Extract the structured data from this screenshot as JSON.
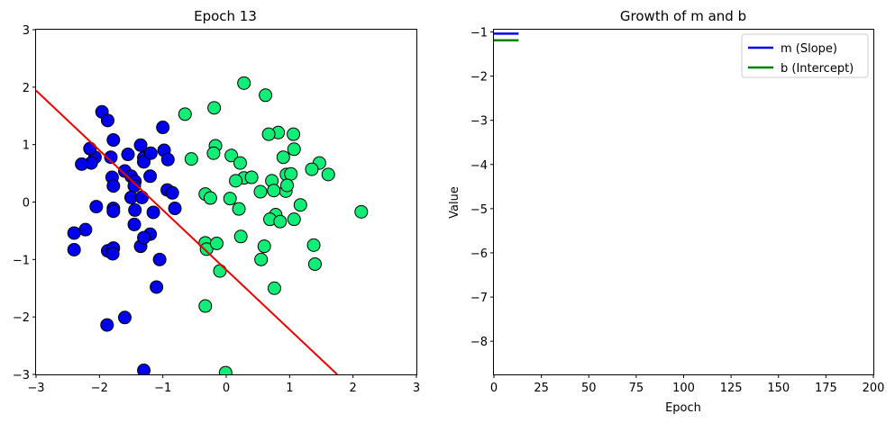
{
  "chart_data": [
    {
      "type": "scatter",
      "title": "Epoch 13",
      "xlabel": "",
      "ylabel": "",
      "xlim": [
        -3,
        3
      ],
      "ylim": [
        -3,
        3
      ],
      "xticks": [
        -3,
        -2,
        -1,
        0,
        1,
        2,
        3
      ],
      "yticks": [
        -3,
        -2,
        -1,
        0,
        1,
        2,
        3
      ],
      "grid": false,
      "series": [
        {
          "color": "#0000ee",
          "points": [
            [
              -1.96,
              1.57
            ],
            [
              -1.87,
              1.42
            ],
            [
              -1.78,
              1.08
            ],
            [
              -2.07,
              0.78
            ],
            [
              -2.15,
              0.93
            ],
            [
              -2.13,
              0.68
            ],
            [
              -2.28,
              0.66
            ],
            [
              -1.82,
              0.78
            ],
            [
              -1.8,
              0.43
            ],
            [
              -1.78,
              0.28
            ],
            [
              -1.6,
              0.54
            ],
            [
              -1.55,
              0.83
            ],
            [
              -1.5,
              0.45
            ],
            [
              -1.44,
              0.36
            ],
            [
              -1.35,
              0.99
            ],
            [
              -1.3,
              0.77
            ],
            [
              -1.3,
              0.7
            ],
            [
              -1.19,
              0.85
            ],
            [
              -1.2,
              0.45
            ],
            [
              -1.0,
              1.3
            ],
            [
              -0.98,
              0.9
            ],
            [
              -0.92,
              0.74
            ],
            [
              -0.93,
              0.21
            ],
            [
              -0.85,
              0.16
            ],
            [
              -0.81,
              -0.11
            ],
            [
              -1.15,
              -0.18
            ],
            [
              -1.45,
              0.28
            ],
            [
              -1.5,
              0.08
            ],
            [
              -1.33,
              0.08
            ],
            [
              -1.44,
              -0.14
            ],
            [
              -1.45,
              -0.39
            ],
            [
              -1.2,
              -0.56
            ],
            [
              -1.35,
              -0.77
            ],
            [
              -1.3,
              -0.62
            ],
            [
              -1.78,
              -0.11
            ],
            [
              -1.78,
              -0.16
            ],
            [
              -2.05,
              -0.08
            ],
            [
              -2.22,
              -0.48
            ],
            [
              -2.4,
              -0.54
            ],
            [
              -2.4,
              -0.83
            ],
            [
              -1.87,
              -0.85
            ],
            [
              -1.78,
              -0.8
            ],
            [
              -1.79,
              -0.9
            ],
            [
              -1.05,
              -1.0
            ],
            [
              -1.1,
              -1.48
            ],
            [
              -1.6,
              -2.01
            ],
            [
              -1.88,
              -2.14
            ],
            [
              -1.3,
              -2.93
            ]
          ]
        },
        {
          "color": "#11ee77",
          "points": [
            [
              0.28,
              2.07
            ],
            [
              0.62,
              1.86
            ],
            [
              -0.65,
              1.53
            ],
            [
              -0.19,
              1.64
            ],
            [
              0.82,
              1.21
            ],
            [
              0.67,
              1.18
            ],
            [
              1.06,
              1.18
            ],
            [
              1.07,
              0.92
            ],
            [
              -0.17,
              0.98
            ],
            [
              -0.2,
              0.85
            ],
            [
              0.08,
              0.81
            ],
            [
              -0.55,
              0.75
            ],
            [
              0.22,
              0.68
            ],
            [
              0.9,
              0.78
            ],
            [
              1.47,
              0.68
            ],
            [
              1.35,
              0.57
            ],
            [
              1.61,
              0.48
            ],
            [
              0.95,
              0.48
            ],
            [
              1.02,
              0.49
            ],
            [
              0.28,
              0.42
            ],
            [
              0.15,
              0.37
            ],
            [
              0.4,
              0.43
            ],
            [
              0.72,
              0.37
            ],
            [
              0.94,
              0.19
            ],
            [
              0.96,
              0.29
            ],
            [
              0.75,
              0.2
            ],
            [
              0.54,
              0.18
            ],
            [
              -0.33,
              0.14
            ],
            [
              -0.25,
              0.07
            ],
            [
              0.06,
              0.06
            ],
            [
              1.17,
              -0.05
            ],
            [
              0.2,
              -0.12
            ],
            [
              0.78,
              -0.22
            ],
            [
              0.69,
              -0.3
            ],
            [
              0.85,
              -0.34
            ],
            [
              1.07,
              -0.3
            ],
            [
              2.13,
              -0.17
            ],
            [
              0.23,
              -0.6
            ],
            [
              0.6,
              -0.77
            ],
            [
              1.38,
              -0.75
            ],
            [
              -0.33,
              -0.71
            ],
            [
              -0.31,
              -0.82
            ],
            [
              -0.15,
              -0.72
            ],
            [
              0.55,
              -1.0
            ],
            [
              1.4,
              -1.08
            ],
            [
              -0.1,
              -1.2
            ],
            [
              0.76,
              -1.5
            ],
            [
              -0.33,
              -1.81
            ],
            [
              -0.01,
              -2.97
            ]
          ]
        }
      ],
      "line": {
        "color": "#ee0000",
        "points": [
          [
            -3,
            1.94
          ],
          [
            1.75,
            -3
          ]
        ]
      }
    },
    {
      "type": "line",
      "title": "Growth of m and b",
      "xlabel": "Epoch",
      "ylabel": "Value",
      "xlim": [
        0,
        200
      ],
      "ylim": [
        -8.75,
        -0.95
      ],
      "xticks": [
        0,
        25,
        50,
        75,
        100,
        125,
        150,
        175,
        200
      ],
      "yticks": [
        -1,
        -2,
        -3,
        -4,
        -5,
        -6,
        -7,
        -8
      ],
      "grid": false,
      "legend": "top-right",
      "series": [
        {
          "name": "m (Slope)",
          "color": "#0000ee",
          "x": [
            0,
            13
          ],
          "y": [
            -1.04,
            -1.04
          ]
        },
        {
          "name": "b (Intercept)",
          "color": "#008000",
          "x": [
            0,
            13
          ],
          "y": [
            -1.19,
            -1.19
          ]
        }
      ]
    }
  ]
}
